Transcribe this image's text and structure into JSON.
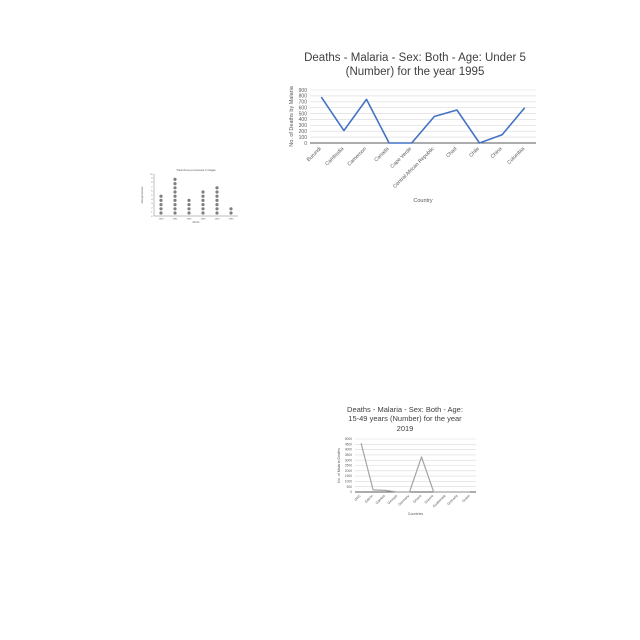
{
  "colors": {
    "line_primary": "#4472c4",
    "line_secondary": "#a5a5a5",
    "dots": "#7f7f7f",
    "axis": "#595959",
    "grid": "#d9d9d9",
    "text": "#595959",
    "title": "#404040"
  },
  "chart_data": [
    {
      "type": "line",
      "title": "Deaths - Malaria - Sex: Both - Age: Under 5 (Number) for the year 1995",
      "title_lines": [
        "Deaths - Malaria - Sex: Both - Age: Under 5",
        "(Number) for the year 1995"
      ],
      "xlabel": "Country",
      "ylabel": "No. of Deaths by Malaria",
      "categories": [
        "Burundi",
        "Cambodia",
        "Cameroon",
        "Canada",
        "Cape Verde",
        "Central African Republic",
        "Chad",
        "Chile",
        "China",
        "Colombia"
      ],
      "values": [
        780,
        210,
        740,
        0,
        0,
        450,
        560,
        0,
        140,
        600
      ],
      "ylim": [
        0,
        900
      ],
      "yticks": [
        0,
        100,
        200,
        300,
        400,
        500,
        600,
        700,
        800,
        900
      ],
      "ytick_labels": [
        "0",
        "100",
        "200",
        "300",
        "400",
        "500",
        "600",
        "700",
        "800",
        "900"
      ],
      "grid": true,
      "legend": "none"
    },
    {
      "type": "scatter",
      "title": "Total Area processed in Algae",
      "xlabel": "Month",
      "ylabel": "Area processed",
      "categories": [
        "1980",
        "1981",
        "1982",
        "1983",
        "1984",
        "1985"
      ],
      "values": [
        5,
        9,
        4,
        6,
        7,
        2
      ],
      "ylim": [
        0,
        10
      ],
      "yticks": [
        0,
        1,
        2,
        3,
        4,
        5,
        6,
        7,
        8,
        9,
        10
      ],
      "ytick_labels": [
        "0",
        "1",
        "2",
        "3",
        "4",
        "5",
        "6",
        "7",
        "8",
        "9",
        "10"
      ],
      "style": "dot-stack",
      "grid": false,
      "legend": "none"
    },
    {
      "type": "line",
      "title": "Deaths - Malaria - Sex: Both - Age: 15-49 years (Number) for the year 2019",
      "title_lines": [
        "Deaths - Malaria - Sex: Both - Age:",
        "15-49 years (Number) for the year",
        "2019"
      ],
      "xlabel": "Countries",
      "ylabel": "No. of Malaria Deaths",
      "categories": [
        "DRC",
        "Gabon",
        "Gambia",
        "Georgia",
        "Germany",
        "Ghana",
        "Greece",
        "Guatemala",
        "Grenada",
        "Guam"
      ],
      "values": [
        4600,
        200,
        150,
        0,
        0,
        3300,
        0,
        0,
        0,
        0
      ],
      "ylim": [
        0,
        5000
      ],
      "yticks": [
        0,
        500,
        1000,
        1500,
        2000,
        2500,
        3000,
        3500,
        4000,
        4500,
        5000
      ],
      "ytick_labels": [
        "0",
        "500",
        "1000",
        "1500",
        "2000",
        "2500",
        "3000",
        "3500",
        "4000",
        "4500",
        "5000"
      ],
      "grid": true,
      "legend": "none"
    }
  ]
}
